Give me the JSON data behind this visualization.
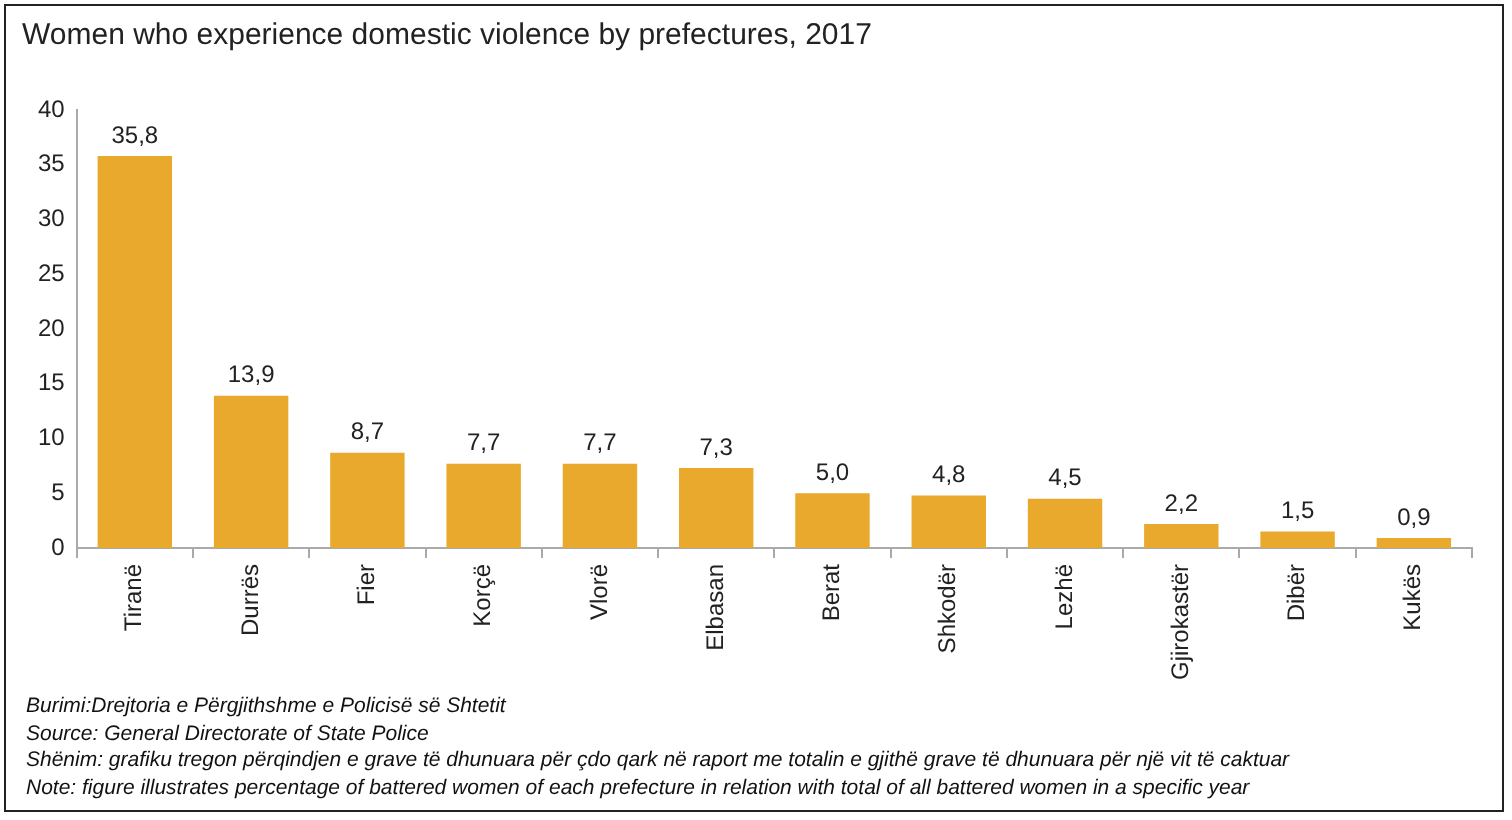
{
  "chart_data": {
    "type": "bar",
    "title": "Women who experience domestic violence by prefectures, 2017",
    "categories": [
      "Tiranë",
      "Durrës",
      "Fier",
      "Korçë",
      "Vlorë",
      "Elbasan",
      "Berat",
      "Shkodër",
      "Lezhë",
      "Gjirokastër",
      "Dibër",
      "Kukës"
    ],
    "values": [
      35.8,
      13.9,
      8.7,
      7.7,
      7.7,
      7.3,
      5.0,
      4.8,
      4.5,
      2.2,
      1.5,
      0.9
    ],
    "value_labels": [
      "35,8",
      "13,9",
      "8,7",
      "7,7",
      "7,7",
      "7,3",
      "5,0",
      "4,8",
      "4,5",
      "2,2",
      "1,5",
      "0,9"
    ],
    "color": "#e8a92c",
    "ylim": [
      0,
      40
    ],
    "yticks": [
      0,
      5,
      10,
      15,
      20,
      25,
      30,
      35,
      40
    ],
    "grid": false,
    "legend": false,
    "annotations": [
      "Burimi:Drejtoria e Përgjithshme e Policisë së Shtetit",
      "Source: General Directorate of State Police",
      "Shënim: grafiku tregon përqindjen e grave të dhunuara për çdo qark në raport me totalin e gjithë grave të dhunuara për një vit të caktuar",
      "Note: figure illustrates percentage of battered women of each prefecture in relation with total of all battered women in a specific year"
    ]
  }
}
